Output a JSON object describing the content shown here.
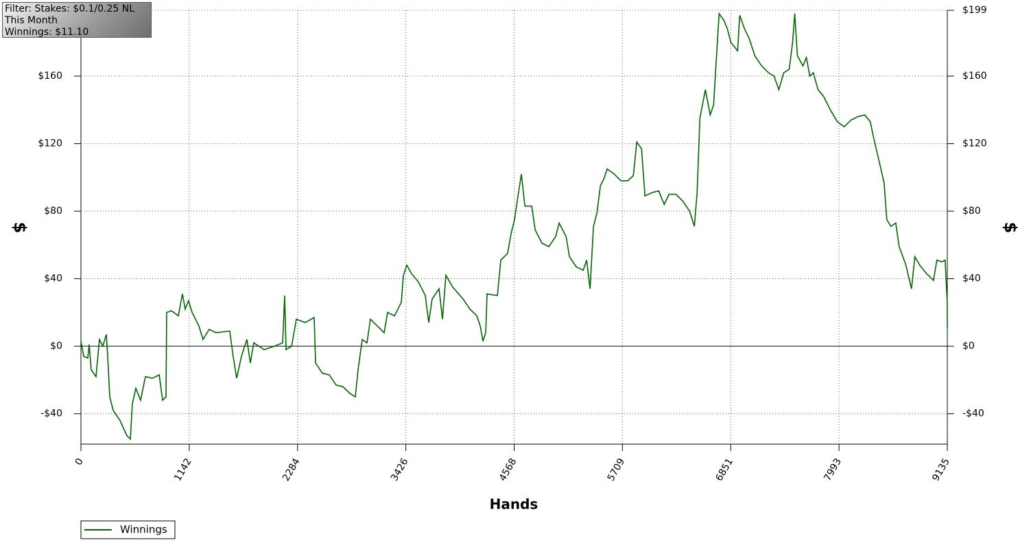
{
  "chart_data": {
    "type": "line",
    "annotations": [
      "Filter: Stakes: $0.1/0.25 NL",
      "This Month",
      "Winnings: $11.10"
    ],
    "xlabel": "Hands",
    "ylabel": "$",
    "xlim": [
      0,
      9135
    ],
    "xticks": [
      0,
      1142,
      2284,
      3426,
      4568,
      5709,
      6851,
      7993,
      9135
    ],
    "ylim": [
      -58,
      199
    ],
    "yticks": [
      {
        "value": -40,
        "label": "-$40"
      },
      {
        "value": 0,
        "label": "$0"
      },
      {
        "value": 40,
        "label": "$40"
      },
      {
        "value": 80,
        "label": "$80"
      },
      {
        "value": 120,
        "label": "$120"
      },
      {
        "value": 160,
        "label": "$160"
      },
      {
        "value": 199,
        "label": "$199"
      }
    ],
    "grid": true,
    "legend": "bottom-left",
    "x": [
      0,
      29,
      72,
      87,
      108,
      159,
      195,
      231,
      268,
      282,
      304,
      340,
      412,
      485,
      521,
      542,
      579,
      629,
      680,
      752,
      825,
      861,
      897,
      904,
      955,
      1027,
      1070,
      1099,
      1135,
      1172,
      1244,
      1287,
      1352,
      1424,
      1569,
      1605,
      1642,
      1692,
      1750,
      1786,
      1822,
      1931,
      2040,
      2127,
      2148,
      2163,
      2221,
      2271,
      2365,
      2459,
      2474,
      2546,
      2618,
      2691,
      2763,
      2836,
      2893,
      2922,
      2966,
      3016,
      3052,
      3125,
      3197,
      3233,
      3306,
      3378,
      3400,
      3436,
      3486,
      3559,
      3631,
      3667,
      3703,
      3776,
      3812,
      3848,
      3920,
      4029,
      4101,
      4174,
      4210,
      4239,
      4268,
      4282,
      4391,
      4427,
      4499,
      4536,
      4572,
      4608,
      4644,
      4681,
      4753,
      4789,
      4861,
      4934,
      5006,
      5042,
      5115,
      5151,
      5223,
      5296,
      5332,
      5368,
      5404,
      5441,
      5477,
      5513,
      5549,
      5622,
      5694,
      5766,
      5824,
      5861,
      5911,
      5947,
      6020,
      6092,
      6150,
      6201,
      6273,
      6345,
      6418,
      6468,
      6497,
      6526,
      6584,
      6635,
      6671,
      6693,
      6729,
      6780,
      6816,
      6852,
      6924,
      6946,
      6997,
      7048,
      7106,
      7178,
      7250,
      7308,
      7359,
      7410,
      7468,
      7504,
      7526,
      7555,
      7613,
      7649,
      7685,
      7722,
      7772,
      7830,
      7902,
      7975,
      8048,
      8120,
      8192,
      8265,
      8323,
      8352,
      8410,
      8468,
      8497,
      8540,
      8591,
      8627,
      8699,
      8757,
      8793,
      8844,
      8916,
      8989,
      9025,
      9076,
      9112,
      9134,
      9135
    ],
    "series": [
      {
        "name": "Winnings",
        "color": "#006400",
        "values": [
          3,
          -6,
          -7,
          1,
          -14,
          -18,
          4,
          0,
          7,
          -6,
          -30,
          -38,
          -44,
          -53,
          -55,
          -34,
          -25,
          -32,
          -18,
          -19,
          -17,
          -32,
          -30,
          20,
          21,
          18,
          31,
          22,
          27,
          20,
          12,
          4,
          10,
          8,
          9,
          -6,
          -19,
          -6,
          4,
          -10,
          2,
          -2,
          0,
          2,
          30,
          -2,
          0,
          16,
          14,
          17,
          -10,
          -16,
          -17,
          -23,
          -24,
          -28,
          -30,
          -14,
          4,
          2,
          16,
          12,
          8,
          20,
          18,
          26,
          42,
          48,
          43,
          38,
          30,
          14,
          28,
          34,
          16,
          42,
          35,
          28,
          22,
          18,
          12,
          3,
          8,
          31,
          30,
          51,
          55,
          67,
          75,
          89,
          102,
          83,
          83,
          69,
          61,
          59,
          65,
          73,
          65,
          53,
          47,
          45,
          51,
          34,
          71,
          79,
          95,
          99,
          105,
          102,
          98,
          98,
          101,
          121,
          117,
          89,
          91,
          92,
          84,
          90,
          90,
          86,
          80,
          71,
          91,
          135,
          152,
          137,
          143,
          164,
          197,
          193,
          188,
          180,
          175,
          196,
          188,
          182,
          172,
          166,
          162,
          160,
          152,
          162,
          164,
          180,
          197,
          172,
          166,
          171,
          160,
          162,
          152,
          148,
          140,
          133,
          130,
          134,
          136,
          137,
          133,
          125,
          111,
          97,
          75,
          71,
          73,
          59,
          48,
          34,
          53,
          48,
          43,
          39,
          51,
          50,
          51,
          26,
          11
        ]
      }
    ]
  }
}
